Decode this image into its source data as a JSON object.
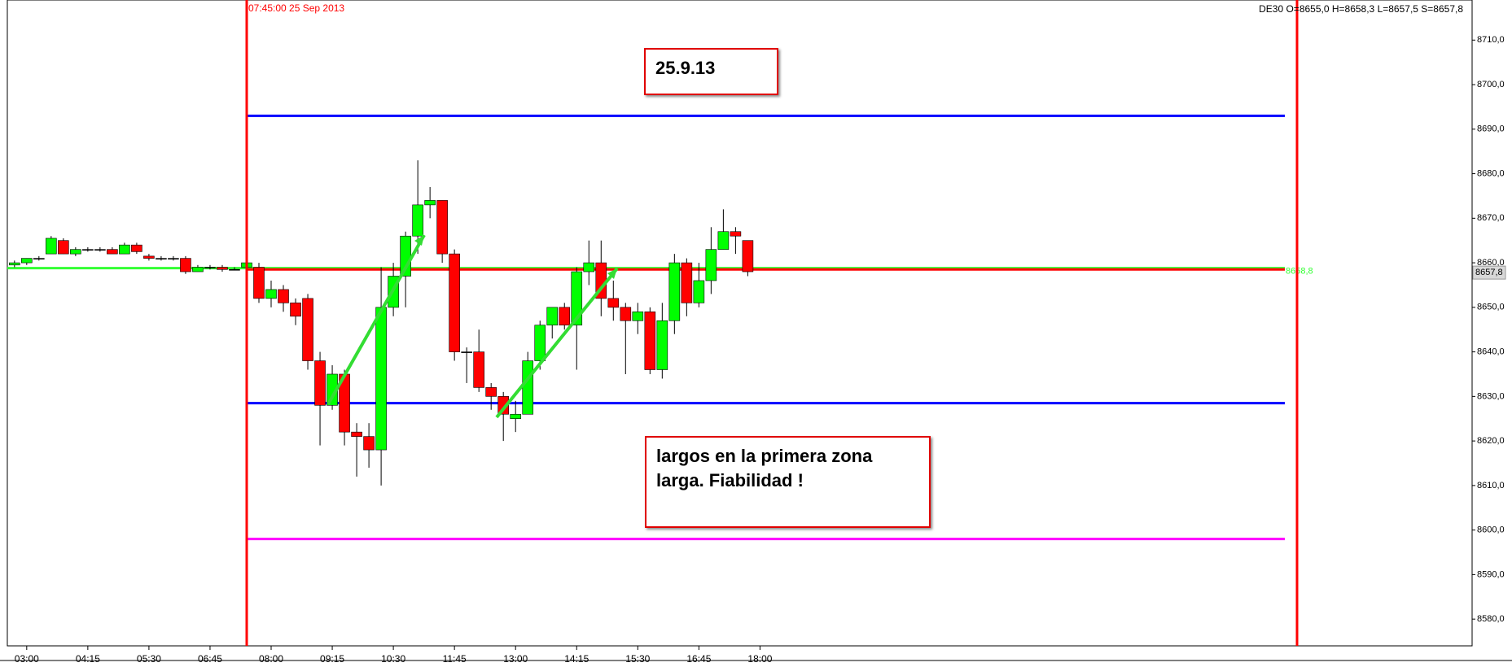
{
  "chart_data": {
    "type": "candlestick",
    "instrument_info": "DE30 O=8655,0 H=8658,3 L=8657,5 S=8657,8",
    "session_marker": "07:45:00 25 Sep 2013",
    "annotations": [
      "25.9.13",
      "largos en la primera zona larga. Fiabilidad !"
    ],
    "categories": [
      null,
      "03:00",
      null,
      null,
      null,
      null,
      "04:15",
      null,
      null,
      null,
      null,
      "05:30",
      null,
      null,
      null,
      null,
      "06:45",
      null,
      null,
      null,
      null,
      "08:00",
      null,
      null,
      null,
      null,
      "09:15",
      null,
      null,
      null,
      null,
      "10:30",
      null,
      null,
      null,
      null,
      "11:45",
      null,
      null,
      null,
      null,
      "13:00",
      null,
      null,
      null,
      null,
      "14:15",
      null,
      null,
      null,
      null,
      "15:30",
      null,
      null,
      null,
      null,
      "16:45",
      null,
      null,
      null,
      null,
      "18:00"
    ],
    "open": [
      8659.5,
      8660,
      8661,
      8662,
      8665,
      8662,
      8663,
      8663,
      8663,
      8662,
      8664,
      8661.5,
      8661,
      8661,
      8661,
      8658,
      8659,
      8659,
      8658.5,
      8659,
      8659,
      8652,
      8654,
      8651,
      8652,
      8638,
      8628,
      8635,
      8622,
      8621,
      8618,
      8650,
      8657,
      8666,
      8673,
      8674,
      8662,
      8640,
      8640,
      8632,
      8630,
      8625,
      8626,
      8638,
      8646,
      8650,
      8646,
      8658,
      8660,
      8652,
      8650,
      8647,
      8649,
      8636,
      8647,
      8660,
      8651,
      8656,
      8663,
      8667,
      8665,
      null
    ],
    "high": [
      8660.5,
      8661,
      8661.5,
      8666,
      8665.5,
      8663.5,
      8663.5,
      8663.5,
      8663.5,
      8664.5,
      8664.5,
      8662,
      8661.5,
      8661.5,
      8661.5,
      8659.5,
      8659.5,
      8659.5,
      8659,
      8660.5,
      8660,
      8656,
      8655,
      8652,
      8653,
      8640,
      8637,
      8636,
      8624,
      8624,
      8659,
      8660,
      8667,
      8683,
      8677,
      8674,
      8663,
      8641,
      8645,
      8633,
      8631,
      8629,
      8640,
      8647,
      8650,
      8651,
      8659,
      8665,
      8665,
      8656,
      8651,
      8651,
      8650,
      8651,
      8662,
      8661,
      8660,
      8668,
      8672,
      8668,
      8665,
      null
    ],
    "low": [
      8659,
      8659.5,
      8660.5,
      8662,
      8662,
      8661.5,
      8662.5,
      8662.5,
      8662,
      8662,
      8662,
      8660.5,
      8660.5,
      8660.5,
      8657.5,
      8658,
      8658.5,
      8658,
      8658.5,
      8658.5,
      8651,
      8650,
      8649,
      8646,
      8636,
      8619,
      8627,
      8619,
      8612,
      8614,
      8610,
      8648,
      8650,
      8662,
      8670,
      8660,
      8638,
      8633,
      8631,
      8627,
      8620,
      8622,
      8626,
      8636,
      8643,
      8645,
      8636,
      8655,
      8648,
      8647,
      8635,
      8644,
      8635,
      8634,
      8644,
      8648,
      8650,
      8653,
      8663,
      8662,
      8657,
      null
    ],
    "close": [
      8660,
      8661,
      8661,
      8665.5,
      8662,
      8663,
      8663,
      8663,
      8662,
      8664,
      8662.5,
      8661,
      8661,
      8661,
      8658,
      8659,
      8659,
      8658.5,
      8658.5,
      8660,
      8652,
      8654,
      8651,
      8648,
      8638,
      8628,
      8635,
      8622,
      8621,
      8618,
      8650,
      8657,
      8666,
      8673,
      8674,
      8662,
      8640,
      8640,
      8632,
      8630,
      8626,
      8626,
      8638,
      8646,
      8650,
      8646,
      8658,
      8660,
      8652,
      8650,
      8647,
      8649,
      8636,
      8647,
      8660,
      8651,
      8656,
      8663,
      8667,
      8666,
      8658,
      null
    ],
    "up_color": "#00ff00",
    "down_color": "#ff0000",
    "levels": [
      {
        "value": 8693,
        "color": "#0000ff"
      },
      {
        "value": 8628.5,
        "color": "#0000ff"
      },
      {
        "value": 8598,
        "color": "#ff00ff"
      },
      {
        "value": 8658.8,
        "color": "#33ff33",
        "label": "8658,8"
      },
      {
        "value": 8658.5,
        "color": "#ff0000"
      }
    ],
    "current_price": {
      "value": 8657.8,
      "label": "8657,8"
    },
    "ylim": [
      8574,
      8719
    ],
    "yticks": [
      {
        "value": 8580,
        "label": "8580,0"
      },
      {
        "value": 8590,
        "label": "8590,0"
      },
      {
        "value": 8600,
        "label": "8600,0"
      },
      {
        "value": 8610,
        "label": "8610,0"
      },
      {
        "value": 8620,
        "label": "8620,0"
      },
      {
        "value": 8630,
        "label": "8630,0"
      },
      {
        "value": 8640,
        "label": "8640,0"
      },
      {
        "value": 8650,
        "label": "8650,0"
      },
      {
        "value": 8660,
        "label": "8660,0"
      },
      {
        "value": 8670,
        "label": "8670,0"
      },
      {
        "value": 8680,
        "label": "8680,0"
      },
      {
        "value": 8690,
        "label": "8690,0"
      },
      {
        "value": 8700,
        "label": "8700,0"
      },
      {
        "value": 8710,
        "label": "8710,0"
      }
    ]
  }
}
